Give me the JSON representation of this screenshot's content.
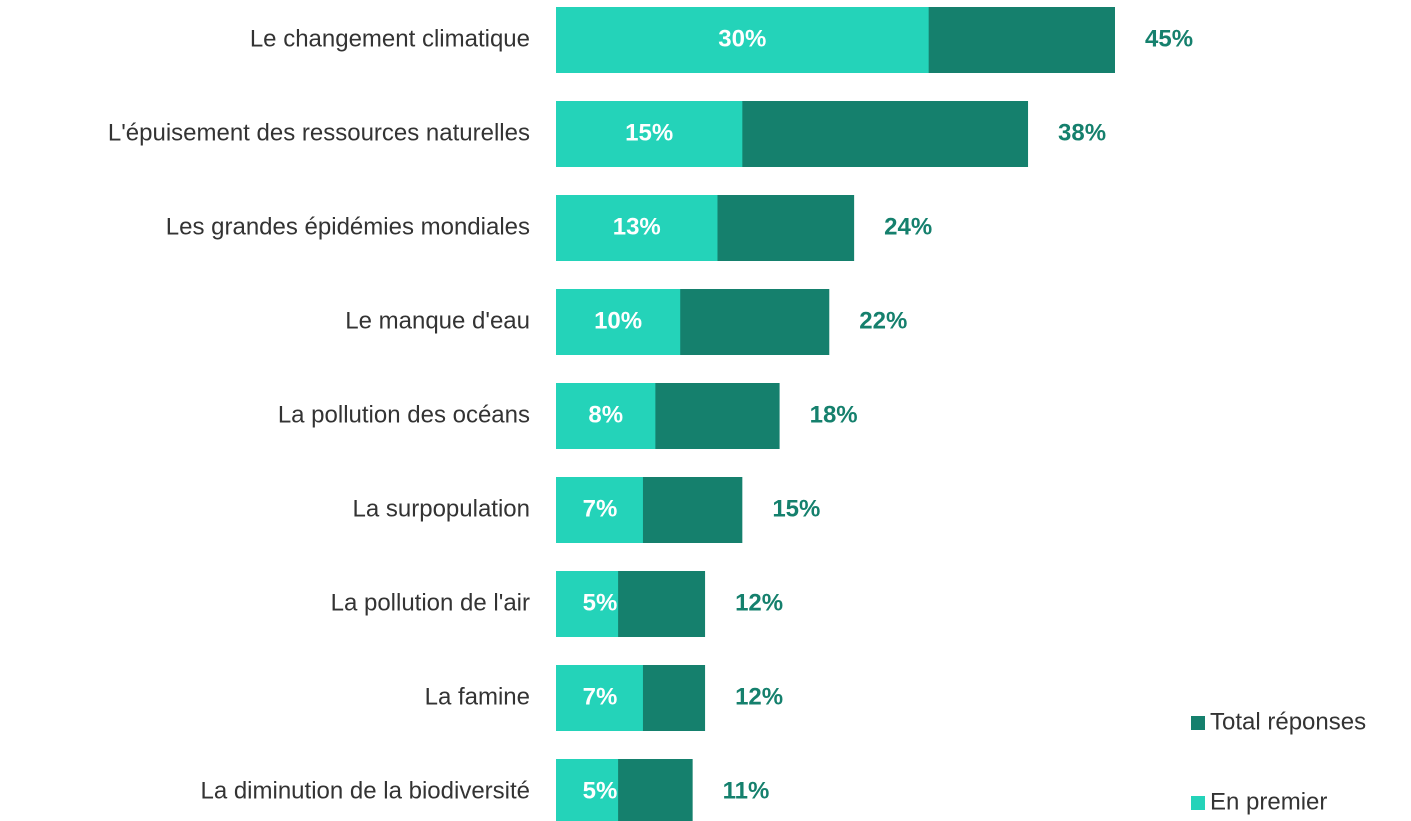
{
  "chart_data": {
    "type": "overlapped-bar",
    "categories": [
      "Le changement climatique",
      "L'épuisement des ressources naturelles",
      "Les grandes épidémies mondiales",
      "Le manque d'eau",
      "La pollution des océans",
      "La surpopulation",
      "La pollution de l'air",
      "La famine",
      "La diminution de la biodiversité"
    ],
    "series": [
      {
        "name": "Total réponses",
        "color": "#15806d",
        "values": [
          45,
          38,
          24,
          22,
          18,
          15,
          12,
          12,
          11
        ],
        "value_labels": [
          "45%",
          "38%",
          "24%",
          "22%",
          "18%",
          "15%",
          "12%",
          "12%",
          "11%"
        ]
      },
      {
        "name": "En premier",
        "color": "#24d3b9",
        "values": [
          30,
          15,
          13,
          10,
          8,
          7,
          5,
          7,
          5
        ],
        "value_labels": [
          "30%",
          "15%",
          "13%",
          "10%",
          "8%",
          "7%",
          "5%",
          "7%",
          "5%"
        ]
      }
    ],
    "legend": "bottom-right"
  }
}
